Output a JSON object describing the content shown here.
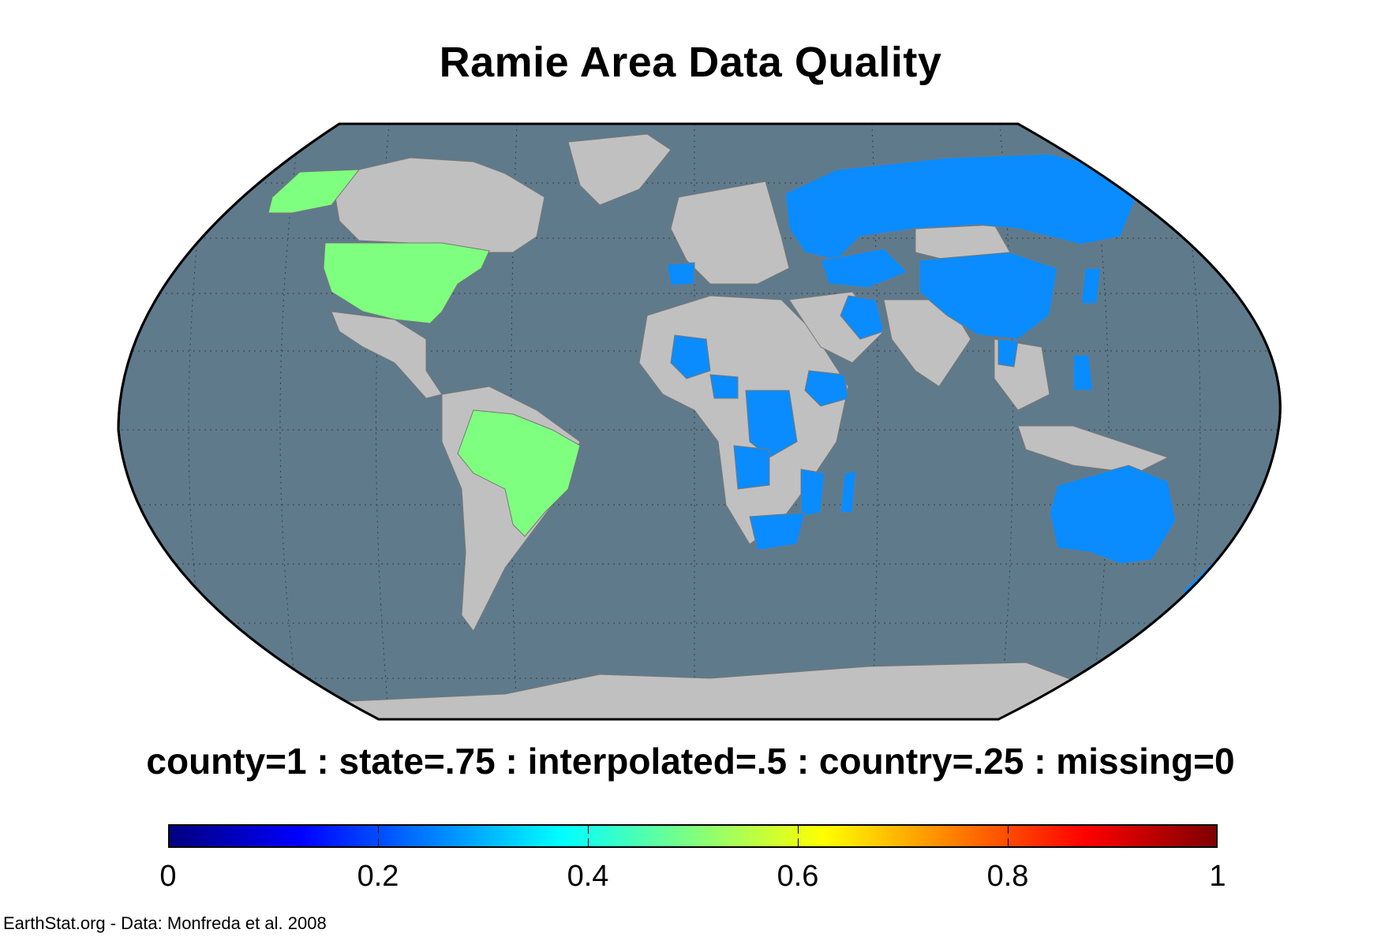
{
  "title": "Ramie Area Data Quality",
  "legend": {
    "caption": "county=1 : state=.75 : interpolated=.5 : country=.25 : missing=0",
    "ticks": [
      "0",
      "0.2",
      "0.4",
      "0.6",
      "0.8",
      "1"
    ],
    "tick_values": [
      0,
      0.2,
      0.4,
      0.6,
      0.8,
      1
    ],
    "range": [
      0,
      1
    ],
    "colormap": "jet",
    "stops": [
      "#00007f",
      "#0000ff",
      "#007fff",
      "#00ffff",
      "#7fff7f",
      "#ffff00",
      "#ff7f00",
      "#ff0000",
      "#7f0000"
    ]
  },
  "credit": "EarthStat.org - Data: Monfreda et al. 2008",
  "colors": {
    "ocean": "#5f7a8b",
    "no_data_land": "#c0c0c0",
    "state_level": "#7fff7f",
    "country_level": "#0a8cff",
    "borders": "#777777",
    "graticule": "#3a3a3a"
  },
  "map": {
    "projection": "Robinson",
    "state_level_regions": [
      "United States",
      "Alaska",
      "Brazil"
    ],
    "country_level_regions": [
      "Russia",
      "China",
      "Kazakhstan",
      "Uzbekistan",
      "Iran",
      "Mongolia",
      "Spain",
      "Mali",
      "Nigeria",
      "Ethiopia",
      "Central African Republic",
      "DR Congo",
      "Angola",
      "Mozambique",
      "Madagascar",
      "South Africa",
      "Australia",
      "New Zealand",
      "Japan",
      "Thailand",
      "Philippines",
      "South Korea"
    ]
  }
}
